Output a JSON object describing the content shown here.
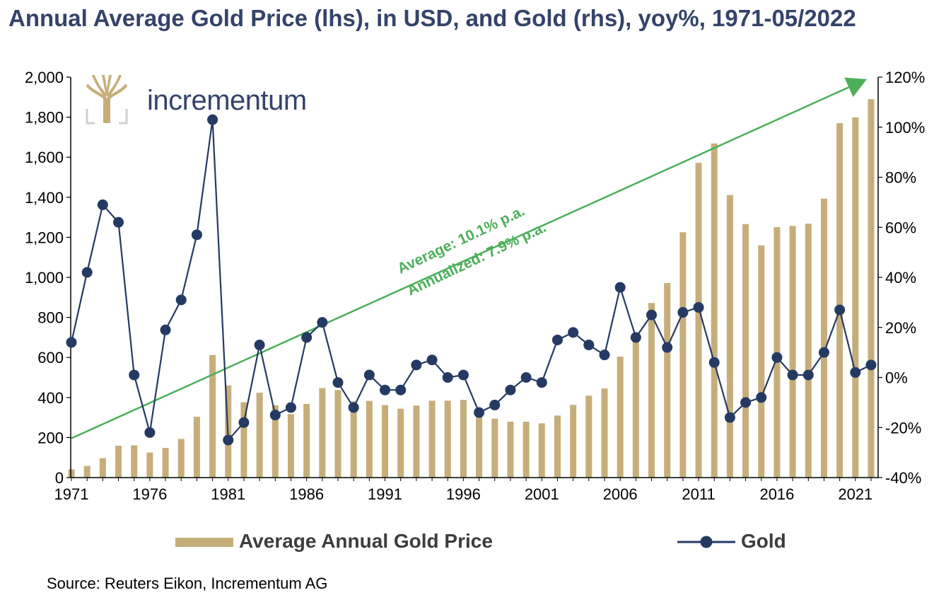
{
  "title": "Annual Average Gold Price (lhs), in USD, and Gold (rhs), yoy%, 1971-05/2022",
  "logo": {
    "text": "incrementum",
    "icon": "tree-logo-icon"
  },
  "annotation": {
    "line1": "Average: 10.1% p.a.",
    "line2": "Annualized: 7.9% p.a."
  },
  "legend": {
    "bar_label": "Average Annual Gold Price",
    "line_label": "Gold"
  },
  "source": "Source: Reuters Eikon, Incrementum AG",
  "colors": {
    "bar": "#c6ae7a",
    "line": "#253a63",
    "trend": "#4caf5a",
    "title": "#34436a"
  },
  "chart_data": {
    "type": "bar+line",
    "categories": [
      1971,
      1972,
      1973,
      1974,
      1975,
      1976,
      1977,
      1978,
      1979,
      1980,
      1981,
      1982,
      1983,
      1984,
      1985,
      1986,
      1987,
      1988,
      1989,
      1990,
      1991,
      1992,
      1993,
      1994,
      1995,
      1996,
      1997,
      1998,
      1999,
      2000,
      2001,
      2002,
      2003,
      2004,
      2005,
      2006,
      2007,
      2008,
      2009,
      2010,
      2011,
      2012,
      2013,
      2014,
      2015,
      2016,
      2017,
      2018,
      2019,
      2020,
      2021,
      2022
    ],
    "x_tick_labels": [
      "1971",
      "1976",
      "1981",
      "1986",
      "1991",
      "1996",
      "2001",
      "2006",
      "2011",
      "2016",
      "2021"
    ],
    "series": [
      {
        "name": "Average Annual Gold Price",
        "type": "bar",
        "axis": "left",
        "values": [
          41,
          58,
          97,
          159,
          161,
          125,
          148,
          193,
          304,
          612,
          460,
          376,
          424,
          361,
          317,
          368,
          447,
          437,
          381,
          383,
          362,
          344,
          360,
          384,
          384,
          388,
          331,
          294,
          279,
          279,
          271,
          310,
          363,
          409,
          445,
          604,
          695,
          872,
          972,
          1225,
          1572,
          1669,
          1411,
          1266,
          1160,
          1251,
          1257,
          1268,
          1393,
          1770,
          1799,
          1890
        ]
      },
      {
        "name": "Gold",
        "type": "line",
        "axis": "right",
        "unit": "%",
        "values": [
          14,
          42,
          69,
          62,
          1,
          -22,
          19,
          31,
          57,
          103,
          -25,
          -18,
          13,
          -15,
          -12,
          16,
          22,
          -2,
          -12,
          1,
          -5,
          -5,
          5,
          7,
          0,
          1,
          -14,
          -11,
          -5,
          0,
          -2,
          15,
          18,
          13,
          9,
          36,
          16,
          25,
          12,
          26,
          28,
          6,
          -16,
          -10,
          -8,
          8,
          1,
          1,
          10,
          27,
          2,
          5
        ]
      }
    ],
    "trend_line": {
      "from": {
        "x": 1971,
        "y": 196
      },
      "to": {
        "x": 2022,
        "y": 1990
      }
    },
    "ylim_left": [
      0,
      2000
    ],
    "yticks_left": [
      "0",
      "200",
      "400",
      "600",
      "800",
      "1,000",
      "1,200",
      "1,400",
      "1,600",
      "1,800",
      "2,000"
    ],
    "ylim_right": [
      -40,
      120
    ],
    "yticks_right": [
      "-40%",
      "-20%",
      "0%",
      "20%",
      "40%",
      "60%",
      "80%",
      "100%",
      "120%"
    ],
    "grid": false,
    "legend_position": "bottom"
  }
}
